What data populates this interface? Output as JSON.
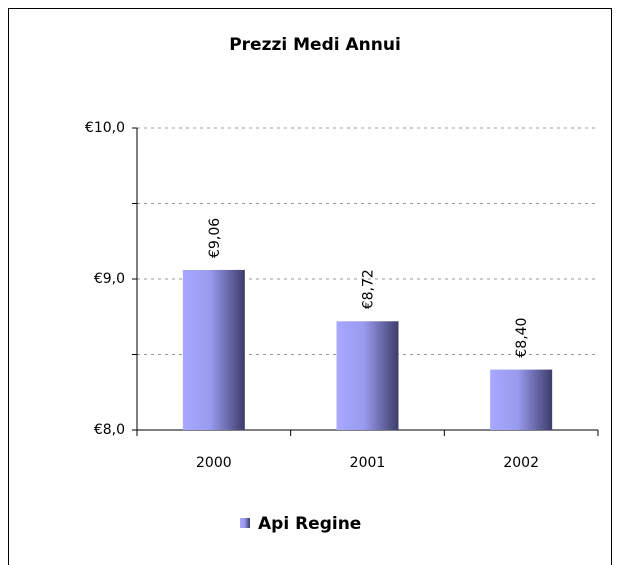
{
  "chart_data": {
    "type": "bar",
    "title": "Prezzi Medi Annui",
    "categories": [
      "2000",
      "2001",
      "2002"
    ],
    "series": [
      {
        "name": "Api Regine",
        "color": "#9999ff",
        "values": [
          9.06,
          8.72,
          8.4
        ],
        "value_labels": [
          "€9,06",
          "€8,72",
          "€8,40"
        ]
      }
    ],
    "ylim": [
      8,
      10
    ],
    "yticks": [
      {
        "value": 8,
        "label": "€8,0"
      },
      {
        "value": 9,
        "label": "€9,0"
      },
      {
        "value": 10,
        "label": "€10,0"
      }
    ],
    "minor_yticks": [
      8.5,
      9.5
    ],
    "grid": true,
    "legend": "bottom"
  }
}
